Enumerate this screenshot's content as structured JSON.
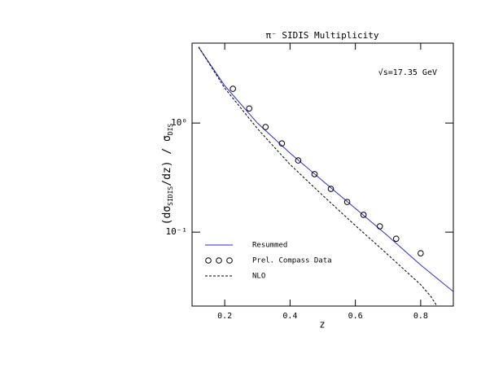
{
  "chart_data": {
    "type": "line",
    "title": "π⁻ SIDIS Multiplicity",
    "annotation": "√s=17.35 GeV",
    "y_label": [
      "(dσ",
      "SIDIS",
      "/dz) / σ",
      "DIS"
    ],
    "x_label": "z",
    "log_y": true,
    "legend": "lower left",
    "xlim": [
      0.1,
      0.9
    ],
    "xticks": [
      0.2,
      0.4,
      0.6,
      0.8
    ],
    "ylim": [
      0.021,
      5.4
    ],
    "yticks": [
      {
        "value": 1,
        "label": "10⁰"
      },
      {
        "value": 0.1,
        "label": "10⁻¹"
      }
    ],
    "series": [
      {
        "name": "Resummed",
        "color": "#2b2bd9",
        "style": "solid",
        "x": [
          0.12,
          0.2,
          0.3,
          0.4,
          0.5,
          0.6,
          0.7,
          0.8,
          0.9
        ],
        "values": [
          4.94,
          2.2,
          1.0,
          0.53,
          0.295,
          0.165,
          0.092,
          0.05,
          0.0285
        ]
      },
      {
        "name": "Prel. Compass Data",
        "color": "#000000",
        "style": "circles",
        "x": [
          0.225,
          0.275,
          0.325,
          0.375,
          0.425,
          0.475,
          0.525,
          0.575,
          0.625,
          0.675,
          0.725,
          0.8
        ],
        "values": [
          2.06,
          1.36,
          0.92,
          0.65,
          0.454,
          0.34,
          0.249,
          0.189,
          0.144,
          0.113,
          0.087,
          0.064
        ]
      },
      {
        "name": "NLO",
        "color": "#000000",
        "style": "dashed",
        "x": [
          0.12,
          0.2,
          0.3,
          0.4,
          0.5,
          0.6,
          0.7,
          0.8,
          0.83,
          0.85
        ],
        "values": [
          5.0,
          2.09,
          0.89,
          0.417,
          0.217,
          0.115,
          0.062,
          0.033,
          0.026,
          0.021
        ]
      }
    ]
  }
}
